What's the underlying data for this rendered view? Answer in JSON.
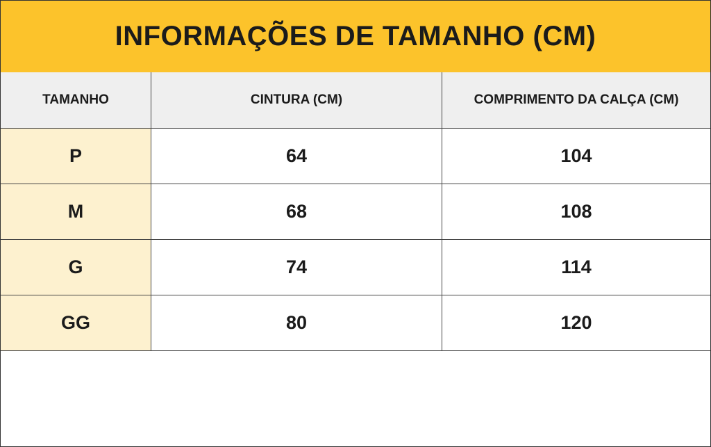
{
  "header": {
    "title": "INFORMAÇÕES DE TAMANHO (CM)"
  },
  "table": {
    "columns": [
      "TAMANHO",
      "CINTURA (CM)",
      "COMPRIMENTO DA CALÇA (CM)"
    ],
    "rows": [
      [
        "P",
        64,
        104
      ],
      [
        "M",
        68,
        108
      ],
      [
        "G",
        74,
        114
      ],
      [
        "GG",
        80,
        120
      ]
    ]
  }
}
